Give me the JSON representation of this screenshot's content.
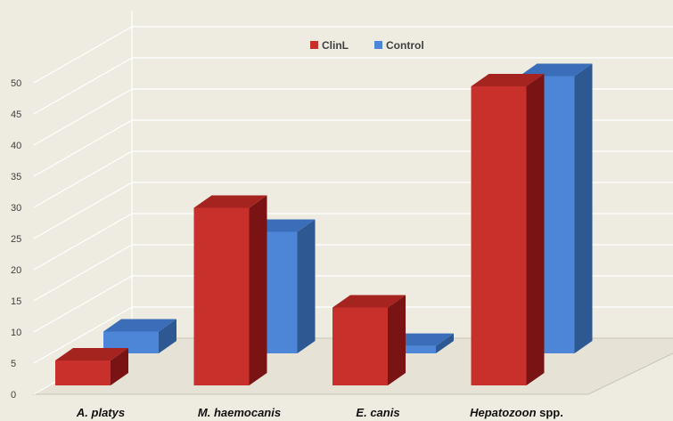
{
  "chart_data": {
    "type": "bar",
    "style": "3d-clustered-column",
    "categories": [
      "A. platys",
      "M. haemocanis",
      "E. canis",
      "Hepatozoon spp."
    ],
    "category_parts": [
      [
        {
          "text": "A. platys",
          "italic": true
        }
      ],
      [
        {
          "text": "M. haemocanis",
          "italic": true
        }
      ],
      [
        {
          "text": "E. canis",
          "italic": true
        }
      ],
      [
        {
          "text": "Hepatozoon",
          "italic": true
        },
        {
          "text": " spp.",
          "italic": false
        }
      ]
    ],
    "series": [
      {
        "name": "ClinL",
        "values": [
          4,
          28.5,
          12.5,
          48
        ]
      },
      {
        "name": "Control",
        "values": [
          3.5,
          19.5,
          1.2,
          44.5
        ]
      }
    ],
    "ylim": [
      0,
      50
    ],
    "yticks": [
      0,
      5,
      10,
      15,
      20,
      25,
      30,
      35,
      40,
      45,
      50
    ],
    "grid": true,
    "legend_position": "top",
    "colors": {
      "ClinL": {
        "front": "#c8302c",
        "top": "#a52420",
        "side": "#7a1414"
      },
      "Control": {
        "front": "#4d86d6",
        "top": "#3a6eb8",
        "side": "#2e5891"
      },
      "background": "#eeebe1",
      "gridline": "#ffffff",
      "axis": "#c8c4b8"
    }
  }
}
